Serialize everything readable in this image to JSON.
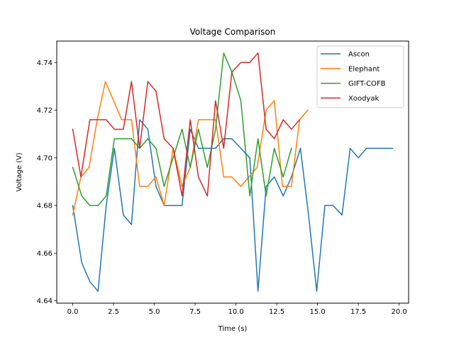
{
  "chart_data": {
    "type": "line",
    "title": "Voltage Comparison",
    "xlabel": "Time (s)",
    "ylabel": "Voltage (V)",
    "xlim": [
      -0.98,
      20.58
    ],
    "ylim": [
      4.639,
      4.749
    ],
    "xticks": [
      0.0,
      2.5,
      5.0,
      7.5,
      10.0,
      12.5,
      15.0,
      17.5,
      20.0
    ],
    "xtick_labels": [
      "0.0",
      "2.5",
      "5.0",
      "7.5",
      "10.0",
      "12.5",
      "15.0",
      "17.5",
      "20.0"
    ],
    "yticks": [
      4.64,
      4.66,
      4.68,
      4.7,
      4.72,
      4.74
    ],
    "ytick_labels": [
      "4.64",
      "4.66",
      "4.68",
      "4.70",
      "4.72",
      "4.74"
    ],
    "grid": false,
    "legend_position": "top-right",
    "series": [
      {
        "name": "Ascon",
        "color": "#1f77b4",
        "x": [
          0.0,
          0.55,
          1.05,
          1.55,
          2.05,
          2.55,
          3.1,
          3.6,
          4.1,
          4.6,
          5.1,
          5.6,
          6.15,
          6.7,
          7.2,
          7.7,
          8.25,
          8.75,
          9.25,
          9.75,
          10.3,
          10.85,
          11.35,
          11.85,
          12.35,
          12.9,
          13.4,
          13.95,
          14.45,
          14.95,
          15.45,
          15.95,
          16.5,
          17.0,
          17.5,
          18.0,
          18.55,
          19.05,
          19.6
        ],
        "y": [
          4.68,
          4.656,
          4.648,
          4.644,
          4.68,
          4.704,
          4.676,
          4.672,
          4.716,
          4.712,
          4.688,
          4.68,
          4.68,
          4.68,
          4.712,
          4.704,
          4.704,
          4.704,
          4.708,
          4.708,
          4.704,
          4.7,
          4.644,
          4.688,
          4.692,
          4.684,
          4.692,
          4.704,
          4.676,
          4.644,
          4.68,
          4.68,
          4.676,
          4.704,
          4.7,
          4.704,
          4.704,
          4.704,
          4.704
        ]
      },
      {
        "name": "Elephant",
        "color": "#ff7f0e",
        "x": [
          0.0,
          0.5,
          1.0,
          1.5,
          2.0,
          2.5,
          3.0,
          3.6,
          4.1,
          4.6,
          5.1,
          5.6,
          6.15,
          6.7,
          7.2,
          7.7,
          8.2,
          8.75,
          9.25,
          9.75,
          10.3,
          10.8,
          11.3,
          11.85,
          12.35,
          12.85,
          13.4,
          13.9,
          14.4
        ],
        "y": [
          4.676,
          4.692,
          4.696,
          4.716,
          4.732,
          4.724,
          4.716,
          4.716,
          4.688,
          4.688,
          4.692,
          4.68,
          4.704,
          4.688,
          4.696,
          4.716,
          4.716,
          4.716,
          4.692,
          4.692,
          4.688,
          4.692,
          4.696,
          4.72,
          4.724,
          4.688,
          4.688,
          4.716,
          4.72
        ]
      },
      {
        "name": "GIFT-COFB",
        "color": "#2ca02c",
        "x": [
          0.0,
          0.55,
          1.05,
          1.55,
          2.05,
          2.55,
          3.1,
          3.6,
          4.1,
          4.6,
          5.1,
          5.6,
          6.15,
          6.7,
          7.2,
          7.7,
          8.25,
          8.75,
          9.25,
          9.75,
          10.3,
          10.85,
          11.35,
          11.85,
          12.35,
          12.9,
          13.4
        ],
        "y": [
          4.696,
          4.684,
          4.68,
          4.68,
          4.684,
          4.708,
          4.708,
          4.708,
          4.704,
          4.708,
          4.704,
          4.688,
          4.7,
          4.712,
          4.696,
          4.712,
          4.696,
          4.712,
          4.744,
          4.736,
          4.724,
          4.684,
          4.708,
          4.684,
          4.704,
          4.692,
          4.704
        ]
      },
      {
        "name": "Xoodyak",
        "color": "#d62728",
        "x": [
          0.0,
          0.5,
          1.05,
          1.55,
          2.05,
          2.55,
          3.1,
          3.6,
          4.1,
          4.6,
          5.1,
          5.6,
          6.15,
          6.7,
          7.2,
          7.7,
          8.25,
          8.75,
          9.25,
          9.75,
          10.3,
          10.85,
          11.35,
          11.85,
          12.35,
          12.9,
          13.4,
          13.9
        ],
        "y": [
          4.712,
          4.692,
          4.716,
          4.716,
          4.716,
          4.712,
          4.712,
          4.732,
          4.704,
          4.732,
          4.728,
          4.708,
          4.704,
          4.684,
          4.716,
          4.692,
          4.684,
          4.724,
          4.704,
          4.736,
          4.74,
          4.74,
          4.744,
          4.712,
          4.708,
          4.716,
          4.712,
          4.716
        ]
      }
    ]
  }
}
